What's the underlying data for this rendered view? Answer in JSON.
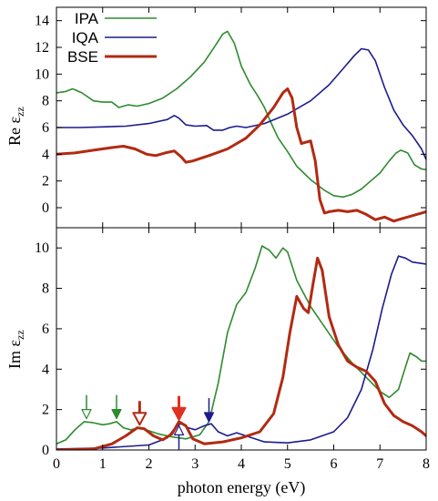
{
  "chart_data": [
    {
      "type": "line",
      "panel": "top",
      "ylabel": "Re ε",
      "ylabel_sub": "zz",
      "xlim": [
        0,
        8
      ],
      "ylim": [
        -1.5,
        15
      ],
      "yticks": [
        0,
        2,
        4,
        6,
        8,
        10,
        12,
        14
      ],
      "grid": false,
      "legend_placement": "top-left",
      "series": [
        {
          "name": "IPA",
          "color": "#2e8b2e",
          "width": 1.6,
          "points": [
            [
              0,
              8.6
            ],
            [
              0.2,
              8.7
            ],
            [
              0.35,
              8.9
            ],
            [
              0.55,
              8.6
            ],
            [
              0.8,
              8.0
            ],
            [
              1.0,
              7.9
            ],
            [
              1.2,
              7.9
            ],
            [
              1.35,
              7.5
            ],
            [
              1.55,
              7.7
            ],
            [
              1.75,
              7.6
            ],
            [
              2.0,
              7.8
            ],
            [
              2.3,
              8.2
            ],
            [
              2.6,
              8.9
            ],
            [
              2.9,
              9.8
            ],
            [
              3.2,
              10.9
            ],
            [
              3.45,
              12.2
            ],
            [
              3.6,
              13.0
            ],
            [
              3.7,
              13.2
            ],
            [
              3.85,
              12.3
            ],
            [
              4.0,
              10.6
            ],
            [
              4.2,
              9.2
            ],
            [
              4.35,
              8.4
            ],
            [
              4.5,
              7.5
            ],
            [
              4.65,
              6.3
            ],
            [
              4.8,
              5.2
            ],
            [
              5.0,
              4.2
            ],
            [
              5.2,
              3.1
            ],
            [
              5.5,
              2.1
            ],
            [
              5.8,
              1.3
            ],
            [
              6.0,
              0.9
            ],
            [
              6.2,
              0.8
            ],
            [
              6.4,
              1.0
            ],
            [
              6.6,
              1.4
            ],
            [
              6.8,
              2.0
            ],
            [
              7.0,
              2.6
            ],
            [
              7.2,
              3.5
            ],
            [
              7.35,
              4.1
            ],
            [
              7.45,
              4.3
            ],
            [
              7.6,
              4.1
            ],
            [
              7.75,
              3.2
            ],
            [
              7.9,
              2.9
            ],
            [
              8.0,
              2.85
            ]
          ]
        },
        {
          "name": "IQA",
          "color": "#1c1c8c",
          "width": 1.6,
          "points": [
            [
              0,
              6.0
            ],
            [
              0.5,
              6.0
            ],
            [
              1.0,
              6.05
            ],
            [
              1.5,
              6.1
            ],
            [
              2.0,
              6.3
            ],
            [
              2.4,
              6.6
            ],
            [
              2.55,
              6.9
            ],
            [
              2.65,
              6.7
            ],
            [
              2.8,
              6.2
            ],
            [
              3.0,
              6.1
            ],
            [
              3.25,
              6.15
            ],
            [
              3.4,
              5.8
            ],
            [
              3.6,
              5.8
            ],
            [
              3.75,
              6.0
            ],
            [
              3.9,
              6.1
            ],
            [
              4.1,
              6.0
            ],
            [
              4.5,
              6.3
            ],
            [
              5.0,
              7.0
            ],
            [
              5.5,
              8.0
            ],
            [
              5.9,
              9.2
            ],
            [
              6.2,
              10.4
            ],
            [
              6.45,
              11.4
            ],
            [
              6.6,
              11.9
            ],
            [
              6.75,
              11.8
            ],
            [
              6.9,
              11.0
            ],
            [
              7.1,
              9.0
            ],
            [
              7.3,
              7.3
            ],
            [
              7.5,
              6.2
            ],
            [
              7.7,
              5.4
            ],
            [
              7.9,
              4.4
            ],
            [
              8.0,
              3.6
            ]
          ]
        },
        {
          "name": "BSE",
          "color": "#b22a12",
          "width": 3,
          "points": [
            [
              0,
              4.0
            ],
            [
              0.4,
              4.1
            ],
            [
              0.8,
              4.3
            ],
            [
              1.2,
              4.5
            ],
            [
              1.45,
              4.6
            ],
            [
              1.7,
              4.4
            ],
            [
              1.95,
              4.0
            ],
            [
              2.15,
              3.9
            ],
            [
              2.35,
              4.1
            ],
            [
              2.55,
              4.25
            ],
            [
              2.7,
              3.8
            ],
            [
              2.8,
              3.4
            ],
            [
              2.95,
              3.5
            ],
            [
              3.3,
              3.9
            ],
            [
              3.7,
              4.4
            ],
            [
              4.1,
              5.2
            ],
            [
              4.4,
              6.2
            ],
            [
              4.7,
              7.5
            ],
            [
              4.9,
              8.6
            ],
            [
              5.0,
              8.9
            ],
            [
              5.1,
              8.2
            ],
            [
              5.2,
              6.0
            ],
            [
              5.3,
              4.8
            ],
            [
              5.4,
              4.9
            ],
            [
              5.5,
              5.0
            ],
            [
              5.6,
              3.5
            ],
            [
              5.7,
              0.6
            ],
            [
              5.8,
              -0.4
            ],
            [
              5.9,
              -0.3
            ],
            [
              6.1,
              -0.2
            ],
            [
              6.3,
              -0.3
            ],
            [
              6.5,
              -0.2
            ],
            [
              6.7,
              -0.5
            ],
            [
              6.9,
              -0.9
            ],
            [
              7.1,
              -0.7
            ],
            [
              7.3,
              -1.0
            ],
            [
              7.5,
              -0.8
            ],
            [
              7.7,
              -0.6
            ],
            [
              7.9,
              -0.4
            ],
            [
              8.0,
              -0.3
            ]
          ]
        }
      ]
    },
    {
      "type": "line",
      "panel": "bottom",
      "ylabel": "Im ε",
      "ylabel_sub": "zz",
      "xlabel": "photon energy (eV)",
      "xlim": [
        0,
        8
      ],
      "ylim": [
        0,
        11
      ],
      "xticks": [
        0,
        1,
        2,
        3,
        4,
        5,
        6,
        7,
        8
      ],
      "yticks": [
        0,
        2,
        4,
        6,
        8,
        10
      ],
      "grid": false,
      "series": [
        {
          "name": "IPA",
          "color": "#2e8b2e",
          "width": 1.6,
          "points": [
            [
              0,
              0.3
            ],
            [
              0.2,
              0.5
            ],
            [
              0.4,
              1.0
            ],
            [
              0.6,
              1.4
            ],
            [
              0.8,
              1.35
            ],
            [
              1.0,
              1.25
            ],
            [
              1.15,
              1.3
            ],
            [
              1.3,
              1.4
            ],
            [
              1.45,
              1.1
            ],
            [
              1.6,
              1.0
            ],
            [
              1.8,
              1.1
            ],
            [
              2.0,
              0.95
            ],
            [
              2.2,
              0.8
            ],
            [
              2.5,
              0.65
            ],
            [
              2.8,
              0.55
            ],
            [
              3.1,
              0.75
            ],
            [
              3.3,
              1.4
            ],
            [
              3.5,
              3.3
            ],
            [
              3.7,
              5.8
            ],
            [
              3.9,
              7.2
            ],
            [
              4.1,
              7.8
            ],
            [
              4.3,
              9.0
            ],
            [
              4.45,
              10.1
            ],
            [
              4.6,
              9.9
            ],
            [
              4.75,
              9.5
            ],
            [
              4.9,
              10.0
            ],
            [
              5.0,
              9.8
            ],
            [
              5.2,
              8.4
            ],
            [
              5.5,
              7.1
            ],
            [
              5.8,
              6.1
            ],
            [
              6.1,
              5.1
            ],
            [
              6.4,
              4.3
            ],
            [
              6.7,
              3.6
            ],
            [
              7.0,
              2.9
            ],
            [
              7.2,
              2.6
            ],
            [
              7.4,
              3.0
            ],
            [
              7.55,
              4.1
            ],
            [
              7.65,
              4.8
            ],
            [
              7.8,
              4.6
            ],
            [
              7.9,
              4.4
            ],
            [
              8.0,
              4.4
            ]
          ]
        },
        {
          "name": "IQA",
          "color": "#1c1c8c",
          "width": 1.6,
          "points": [
            [
              0,
              0.05
            ],
            [
              1.0,
              0.1
            ],
            [
              2.0,
              0.25
            ],
            [
              2.4,
              0.6
            ],
            [
              2.6,
              1.2
            ],
            [
              2.7,
              1.3
            ],
            [
              2.85,
              1.1
            ],
            [
              3.0,
              1.0
            ],
            [
              3.2,
              1.2
            ],
            [
              3.35,
              1.3
            ],
            [
              3.5,
              0.9
            ],
            [
              3.7,
              0.7
            ],
            [
              3.9,
              0.85
            ],
            [
              4.1,
              0.7
            ],
            [
              4.5,
              0.4
            ],
            [
              5.0,
              0.35
            ],
            [
              5.5,
              0.5
            ],
            [
              6.0,
              0.9
            ],
            [
              6.3,
              1.6
            ],
            [
              6.6,
              3.0
            ],
            [
              6.85,
              5.0
            ],
            [
              7.05,
              7.0
            ],
            [
              7.25,
              8.7
            ],
            [
              7.4,
              9.6
            ],
            [
              7.55,
              9.5
            ],
            [
              7.7,
              9.3
            ],
            [
              8.0,
              9.2
            ]
          ]
        },
        {
          "name": "BSE",
          "color": "#b22a12",
          "width": 3,
          "points": [
            [
              0,
              0.0
            ],
            [
              0.8,
              0.05
            ],
            [
              1.2,
              0.3
            ],
            [
              1.5,
              0.7
            ],
            [
              1.75,
              1.1
            ],
            [
              1.9,
              1.05
            ],
            [
              2.1,
              0.7
            ],
            [
              2.3,
              0.5
            ],
            [
              2.5,
              0.8
            ],
            [
              2.65,
              1.4
            ],
            [
              2.8,
              1.2
            ],
            [
              2.95,
              0.55
            ],
            [
              3.2,
              0.3
            ],
            [
              3.6,
              0.4
            ],
            [
              4.0,
              0.6
            ],
            [
              4.4,
              0.9
            ],
            [
              4.7,
              1.8
            ],
            [
              4.9,
              3.6
            ],
            [
              5.05,
              5.8
            ],
            [
              5.2,
              7.6
            ],
            [
              5.35,
              7.0
            ],
            [
              5.45,
              6.8
            ],
            [
              5.55,
              8.2
            ],
            [
              5.65,
              9.5
            ],
            [
              5.75,
              8.9
            ],
            [
              5.9,
              6.6
            ],
            [
              6.1,
              5.2
            ],
            [
              6.3,
              4.4
            ],
            [
              6.5,
              4.1
            ],
            [
              6.7,
              3.9
            ],
            [
              6.9,
              3.4
            ],
            [
              7.1,
              2.3
            ],
            [
              7.3,
              1.7
            ],
            [
              7.5,
              1.4
            ],
            [
              7.7,
              1.2
            ],
            [
              7.9,
              0.9
            ],
            [
              8.0,
              0.7
            ]
          ]
        }
      ],
      "markers": [
        {
          "id": "ipa-peak-1",
          "x": 0.65,
          "from": "above",
          "style": "outline",
          "color": "#2e8b2e",
          "tip": 1.55
        },
        {
          "id": "ipa-peak-2",
          "x": 1.3,
          "from": "above",
          "style": "filled",
          "color": "#2e8b2e",
          "tip": 1.55
        },
        {
          "id": "bse-peak-1",
          "x": 1.8,
          "from": "above",
          "style": "outline-thick",
          "color": "#b22a12",
          "tip": 1.25
        },
        {
          "id": "bse-peak-2",
          "x": 2.65,
          "from": "above",
          "style": "filled-thick",
          "color": "#e03020",
          "tip": 1.5
        },
        {
          "id": "iqa-peak-1",
          "x": 2.65,
          "from": "below",
          "style": "outline",
          "color": "#1c1c8c",
          "tip": 1.2
        },
        {
          "id": "iqa-peak-2",
          "x": 3.3,
          "from": "above",
          "style": "filled",
          "color": "#1c1c8c",
          "tip": 1.4
        }
      ]
    }
  ]
}
